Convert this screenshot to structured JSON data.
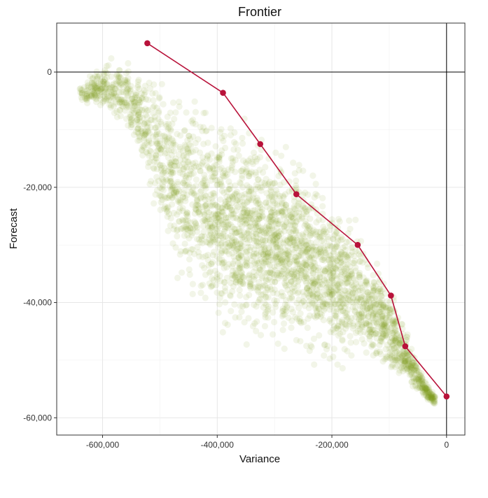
{
  "chart_data": {
    "type": "scatter",
    "title": "Frontier",
    "xlabel": "Variance",
    "ylabel": "Forecast",
    "xlim": [
      -680000,
      32000
    ],
    "ylim": [
      -63000,
      8500
    ],
    "x_ticks": [
      -600000,
      -400000,
      -200000,
      0
    ],
    "x_tick_labels": [
      "-600,000",
      "-400,000",
      "-200,000",
      "0"
    ],
    "y_ticks": [
      0,
      -20000,
      -40000,
      -60000
    ],
    "y_tick_labels": [
      "0",
      "-20,000",
      "-40,000",
      "-60,000"
    ],
    "grid": true,
    "reference_lines": {
      "x": 0,
      "y": 0
    },
    "series": [
      {
        "type": "scatter-cloud",
        "color": "#7f9e1f",
        "opacity": 0.1,
        "approx_count": 6000,
        "envelope": {
          "upper": [
            [
              -640000,
              -3000
            ],
            [
              -600000,
              2500
            ],
            [
              -520000,
              2000
            ],
            [
              -460000,
              -500
            ],
            [
              -400000,
              -4000
            ],
            [
              -330000,
              -7000
            ],
            [
              -260000,
              -12000
            ],
            [
              -200000,
              -19000
            ],
            [
              -150000,
              -26000
            ],
            [
              -100000,
              -35000
            ],
            [
              -70000,
              -44000
            ],
            [
              -40000,
              -53000
            ],
            [
              -20000,
              -57000
            ]
          ],
          "lower": [
            [
              -640000,
              -5000
            ],
            [
              -560000,
              -13000
            ],
            [
              -500000,
              -35000
            ],
            [
              -470000,
              -47000
            ],
            [
              -420000,
              -52000
            ],
            [
              -360000,
              -56000
            ],
            [
              -300000,
              -57500
            ],
            [
              -230000,
              -59000
            ],
            [
              -180000,
              -58000
            ],
            [
              -120000,
              -56500
            ],
            [
              -60000,
              -57000
            ],
            [
              -20000,
              -57000
            ]
          ]
        }
      },
      {
        "type": "line",
        "color": "#b8123a",
        "points": [
          {
            "x": -522000,
            "y": 5000
          },
          {
            "x": -390000,
            "y": -3600
          },
          {
            "x": -325000,
            "y": -12500
          },
          {
            "x": -262000,
            "y": -21200
          },
          {
            "x": -155000,
            "y": -30000
          },
          {
            "x": -97000,
            "y": -38800
          },
          {
            "x": -72000,
            "y": -47600
          },
          {
            "x": 0,
            "y": -56300
          }
        ]
      }
    ]
  }
}
